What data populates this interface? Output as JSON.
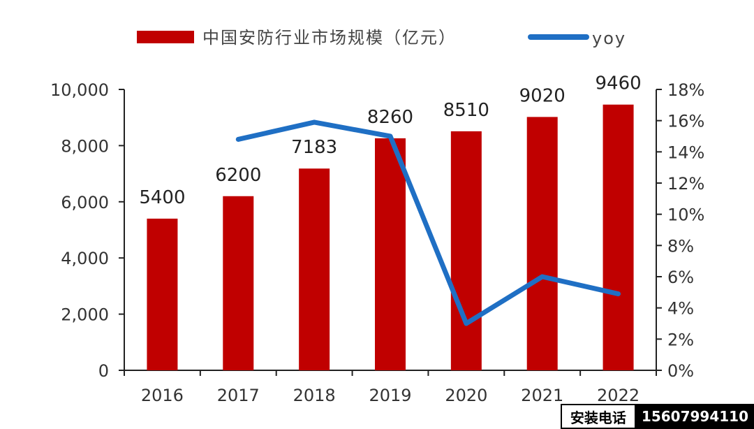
{
  "chart_data": {
    "type": "bar",
    "categories": [
      "2016",
      "2017",
      "2018",
      "2019",
      "2020",
      "2021",
      "2022"
    ],
    "series": [
      {
        "name": "中国安防行业市场规模（亿元）",
        "type": "bar",
        "axis": "left",
        "color": "#C00000",
        "values": [
          5400,
          6200,
          7183,
          8260,
          8510,
          9020,
          9460
        ],
        "data_labels": [
          "5400",
          "6200",
          "7183",
          "8260",
          "8510",
          "9020",
          "9460"
        ]
      },
      {
        "name": "yoy",
        "type": "line",
        "axis": "right",
        "color": "#1F6FC4",
        "values": [
          null,
          14.8,
          15.9,
          15.0,
          3.0,
          6.0,
          4.9
        ]
      }
    ],
    "y_left": {
      "ylim": [
        0,
        10000
      ],
      "ticks": [
        "0",
        "2,000",
        "4,000",
        "6,000",
        "8,000",
        "10,000"
      ]
    },
    "y_right": {
      "ylim": [
        0,
        18
      ],
      "ticks": [
        "0%",
        "2%",
        "4%",
        "6%",
        "8%",
        "10%",
        "12%",
        "14%",
        "16%",
        "18%"
      ]
    },
    "legend_position": "top",
    "grid": false
  },
  "watermark": {
    "label": "安装电话",
    "phone": "15607994110"
  }
}
